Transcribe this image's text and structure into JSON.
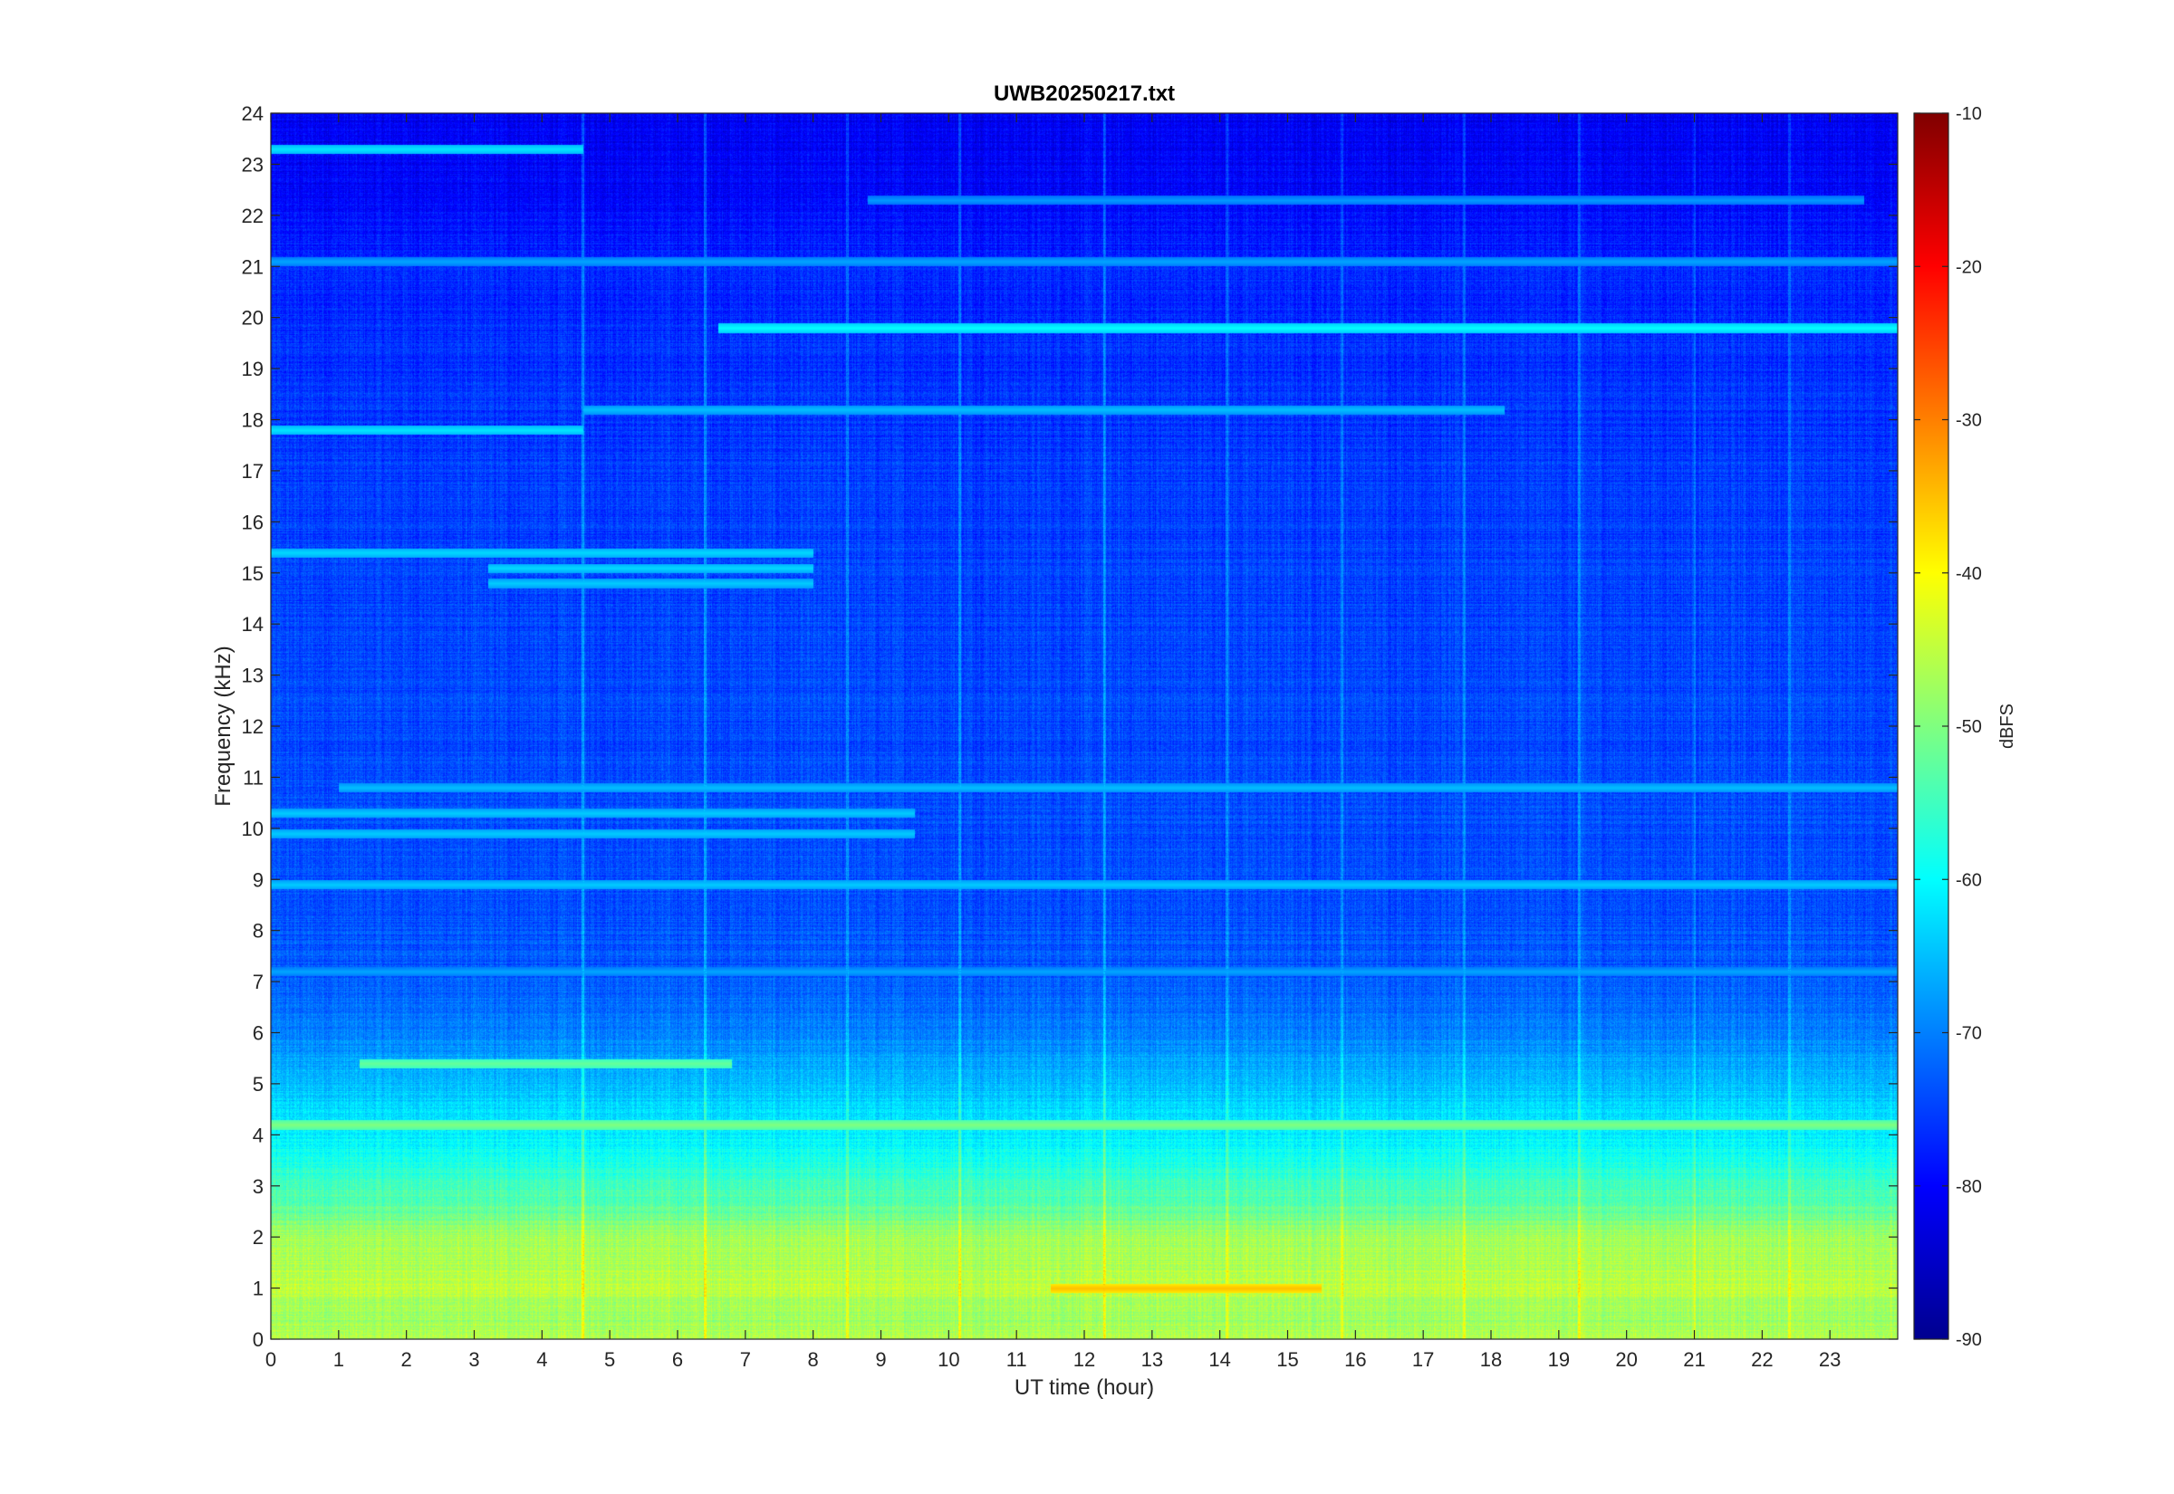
{
  "chart_data": {
    "type": "heatmap",
    "title": "UWB20250217.txt",
    "xlabel": "UT time (hour)",
    "ylabel": "Frequency (kHz)",
    "xlim": [
      0,
      24
    ],
    "ylim": [
      0,
      24
    ],
    "x_ticks": [
      "0",
      "1",
      "2",
      "3",
      "4",
      "5",
      "6",
      "7",
      "8",
      "9",
      "10",
      "11",
      "12",
      "13",
      "14",
      "15",
      "16",
      "17",
      "18",
      "19",
      "20",
      "21",
      "22",
      "23"
    ],
    "y_ticks": [
      "0",
      "1",
      "2",
      "3",
      "4",
      "5",
      "6",
      "7",
      "8",
      "9",
      "10",
      "11",
      "12",
      "13",
      "14",
      "15",
      "16",
      "17",
      "18",
      "19",
      "20",
      "21",
      "22",
      "23",
      "24"
    ],
    "colorbar": {
      "label": "dBFS",
      "range": [
        -90,
        -10
      ],
      "ticks": [
        "-10",
        "-20",
        "-30",
        "-40",
        "-50",
        "-60",
        "-70",
        "-80",
        "-90"
      ],
      "colormap": "jet"
    },
    "background_level_dbfs": -74,
    "frequency_profile_dbfs": [
      {
        "khz": 0.0,
        "dbfs": -46
      },
      {
        "khz": 0.5,
        "dbfs": -48
      },
      {
        "khz": 1.0,
        "dbfs": -45
      },
      {
        "khz": 1.5,
        "dbfs": -46
      },
      {
        "khz": 2.0,
        "dbfs": -47
      },
      {
        "khz": 2.5,
        "dbfs": -52
      },
      {
        "khz": 3.0,
        "dbfs": -55
      },
      {
        "khz": 3.5,
        "dbfs": -58
      },
      {
        "khz": 4.0,
        "dbfs": -61
      },
      {
        "khz": 4.5,
        "dbfs": -63
      },
      {
        "khz": 5.0,
        "dbfs": -65
      },
      {
        "khz": 5.5,
        "dbfs": -67
      },
      {
        "khz": 6.0,
        "dbfs": -70
      },
      {
        "khz": 7.0,
        "dbfs": -73
      },
      {
        "khz": 9.0,
        "dbfs": -74
      },
      {
        "khz": 16.0,
        "dbfs": -75
      },
      {
        "khz": 21.0,
        "dbfs": -77
      },
      {
        "khz": 22.5,
        "dbfs": -80
      },
      {
        "khz": 24.0,
        "dbfs": -81
      }
    ],
    "narrowband_lines": [
      {
        "khz": 19.8,
        "start_hour": 6.6,
        "end_hour": 24.0,
        "dbfs": -60
      },
      {
        "khz": 17.8,
        "start_hour": 0.0,
        "end_hour": 4.6,
        "dbfs": -62
      },
      {
        "khz": 18.2,
        "start_hour": 4.6,
        "end_hour": 18.2,
        "dbfs": -65
      },
      {
        "khz": 22.3,
        "start_hour": 8.8,
        "end_hour": 23.5,
        "dbfs": -68
      },
      {
        "khz": 23.3,
        "start_hour": 0.0,
        "end_hour": 4.6,
        "dbfs": -62
      },
      {
        "khz": 21.1,
        "start_hour": 0.0,
        "end_hour": 24.0,
        "dbfs": -67
      },
      {
        "khz": 15.4,
        "start_hour": 0.0,
        "end_hour": 8.0,
        "dbfs": -63
      },
      {
        "khz": 15.1,
        "start_hour": 3.2,
        "end_hour": 8.0,
        "dbfs": -63
      },
      {
        "khz": 14.8,
        "start_hour": 3.2,
        "end_hour": 8.0,
        "dbfs": -64
      },
      {
        "khz": 10.8,
        "start_hour": 1.0,
        "end_hour": 24.0,
        "dbfs": -65
      },
      {
        "khz": 10.3,
        "start_hour": 0.0,
        "end_hour": 9.5,
        "dbfs": -64
      },
      {
        "khz": 9.9,
        "start_hour": 0.0,
        "end_hour": 9.5,
        "dbfs": -64
      },
      {
        "khz": 8.9,
        "start_hour": 0.0,
        "end_hour": 24.0,
        "dbfs": -64
      },
      {
        "khz": 7.2,
        "start_hour": 0.0,
        "end_hour": 24.0,
        "dbfs": -67
      },
      {
        "khz": 5.4,
        "start_hour": 1.3,
        "end_hour": 6.8,
        "dbfs": -52
      },
      {
        "khz": 4.2,
        "start_hour": 0.0,
        "end_hour": 24.0,
        "dbfs": -50
      },
      {
        "khz": 1.0,
        "start_hour": 11.5,
        "end_hour": 15.5,
        "dbfs": -35
      }
    ],
    "broadband_vertical_lines_hour": [
      4.6,
      6.4,
      8.5,
      10.15,
      12.3,
      14.1,
      15.8,
      17.6,
      19.3,
      21.0,
      22.4
    ]
  }
}
